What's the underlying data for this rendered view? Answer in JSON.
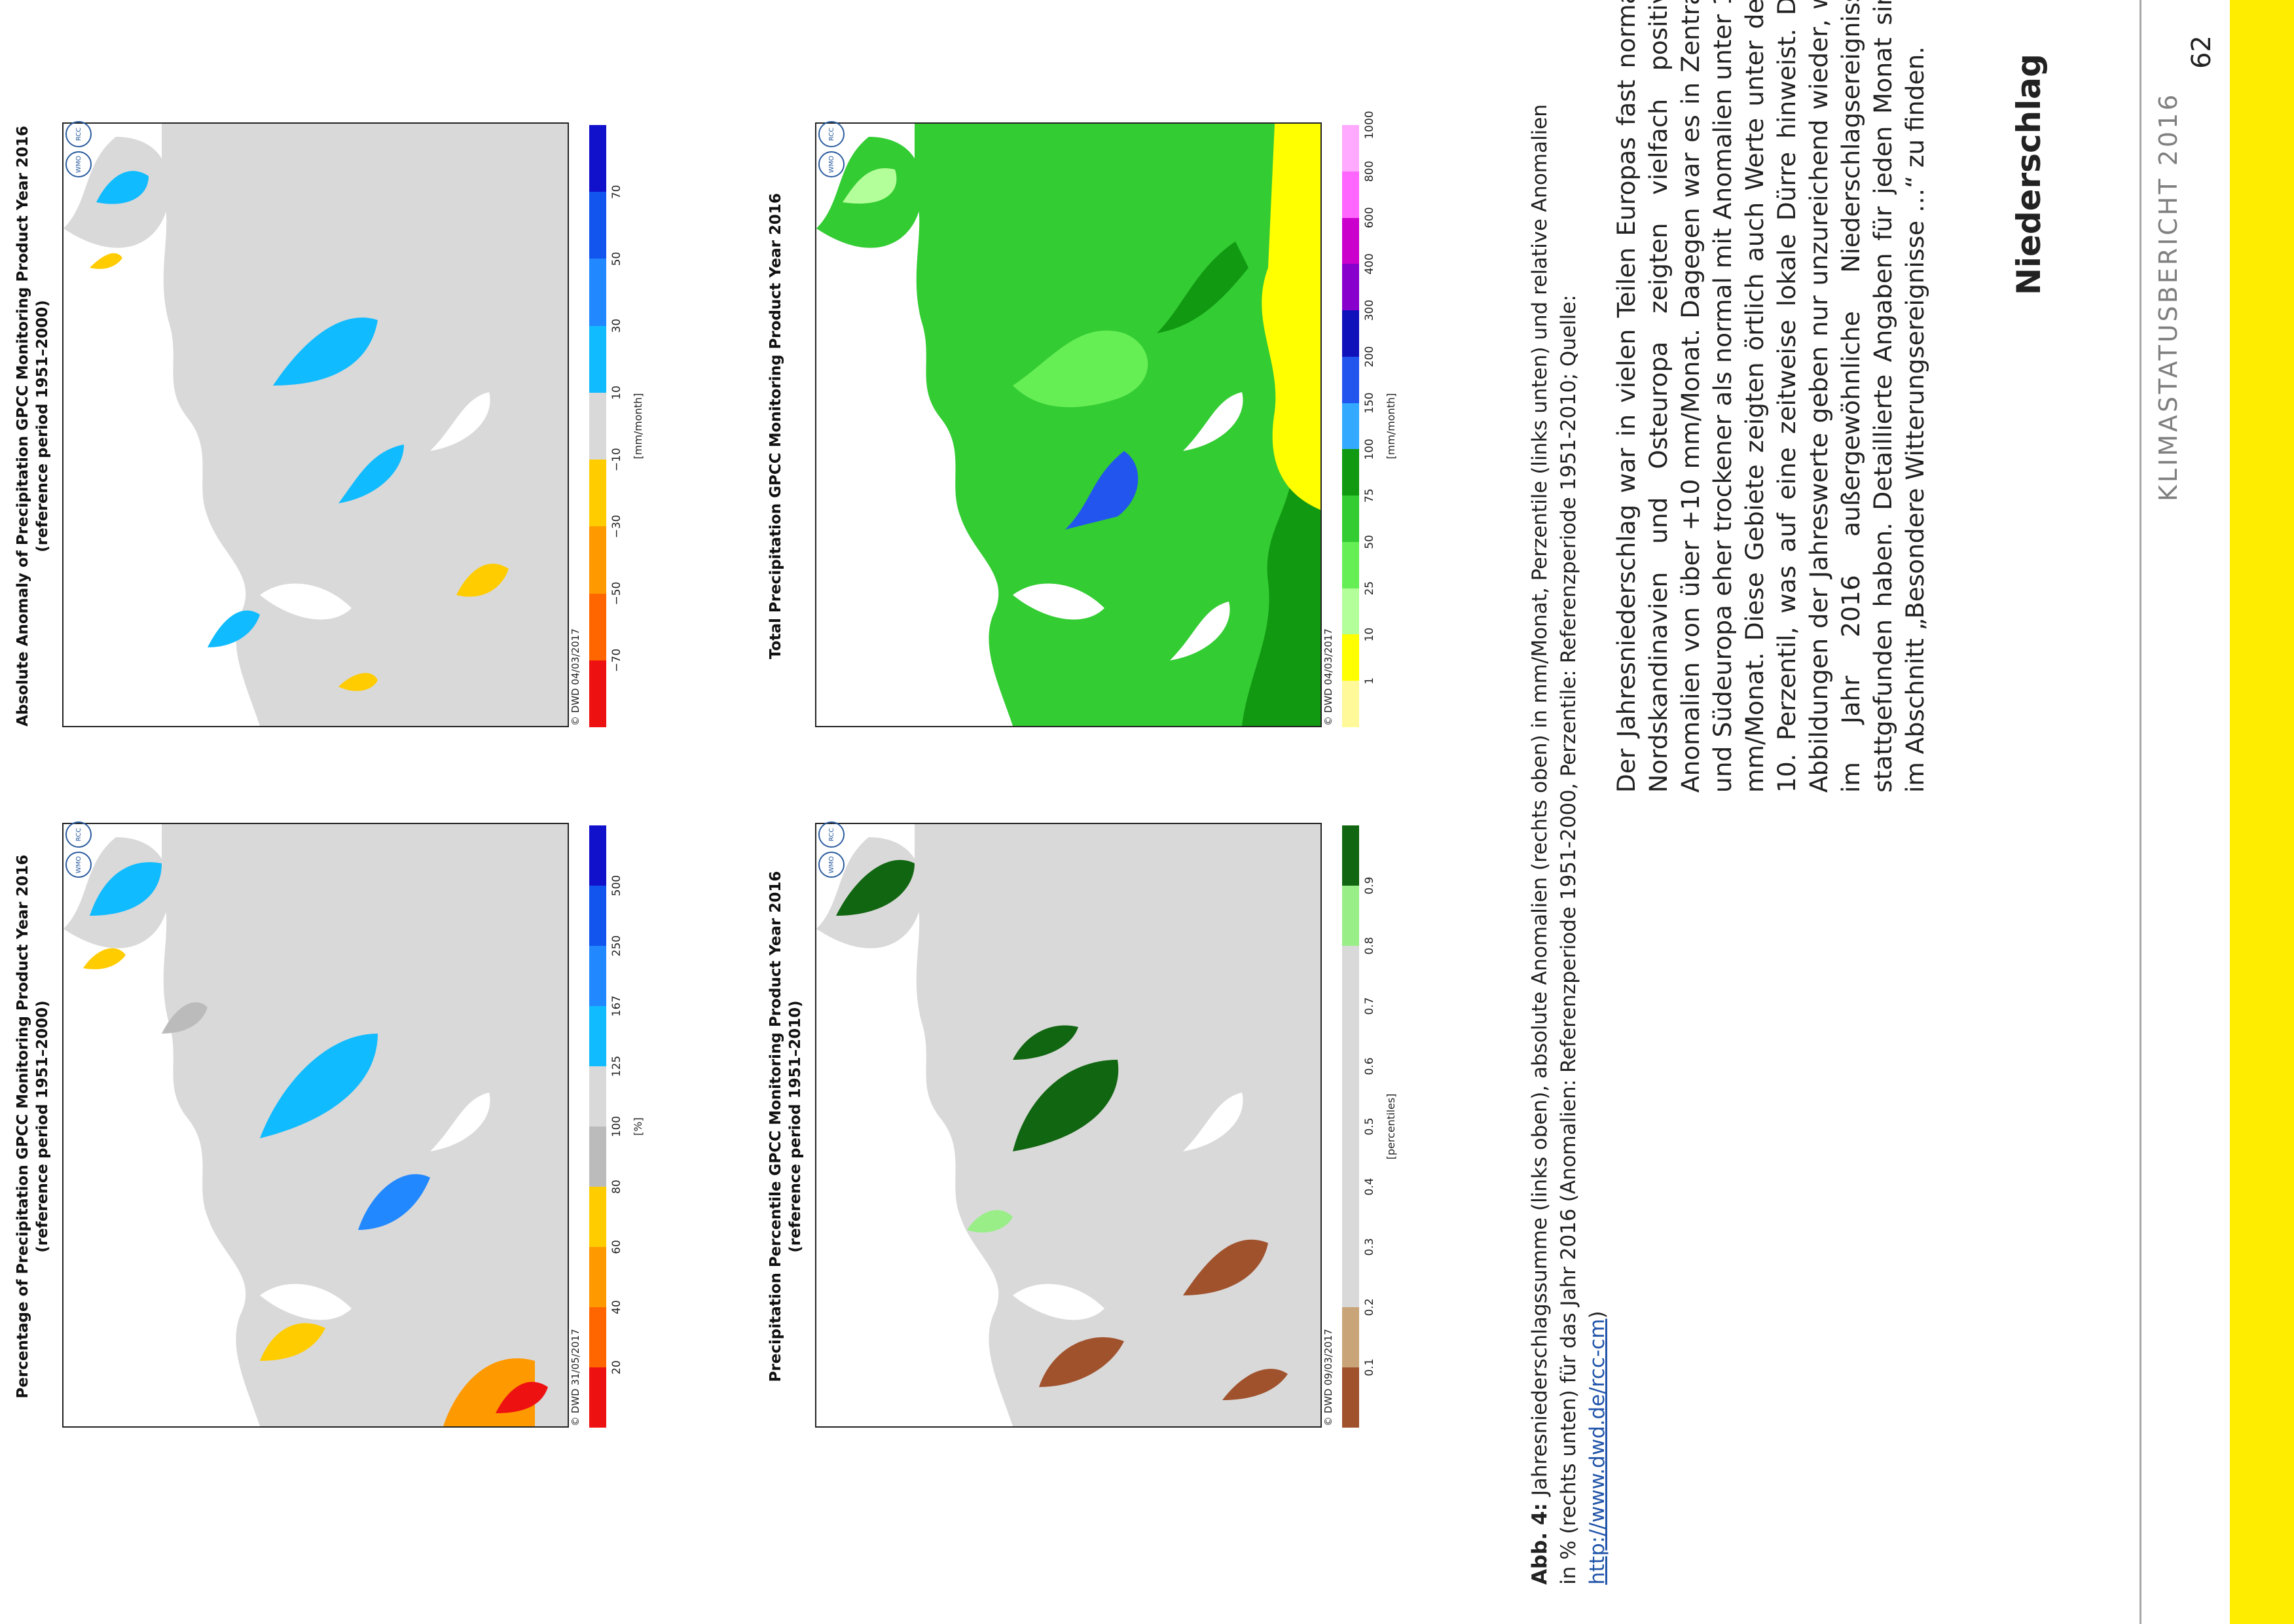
{
  "header": {
    "title": "KLIMASTATUSBERICHT 2016",
    "page_number": "62"
  },
  "section": {
    "title": "Niederschlag",
    "body": "Der Jahresniederschlag war in vielen Teilen Europas fast normal. Nordskandinavien und Osteuropa zeigten vielfach positive Anomalien von über +10 mm/Monat. Dagegen war es in Zentral- und Südeuropa eher trockener als normal mit Anomalien unter  10 mm/Monat. Diese Gebiete zeigten örtlich auch Werte unter dem 10. Perzentil, was auf eine zeitweise lokale Dürre hinweist. Die Abbildungen der Jahreswerte geben nur unzureichend wieder, wo im Jahr 2016 außergewöhnliche Niederschlagsereignisse stattgefunden haben. Detaillierte Angaben für jeden Monat sind im Abschnitt „Besondere Witterungsereignisse …“ zu finden."
  },
  "panels": {
    "total": {
      "title1": "Total Precipitation GPCC Monitoring Product Year 2016",
      "title2": "",
      "credit": "© DWD 04/03/2017",
      "unit": "[mm/month]",
      "ticks": [
        "1",
        "10",
        "25",
        "50",
        "75",
        "100",
        "150",
        "200",
        "300",
        "400",
        "600",
        "800",
        "1000"
      ],
      "colors": [
        "#fff99a",
        "#ffff00",
        "#b3ff9a",
        "#66ee55",
        "#33cc33",
        "#119911",
        "#33aaff",
        "#2255ee",
        "#1111bb",
        "#8800cc",
        "#cc00cc",
        "#ff66ff",
        "#ffaaff"
      ]
    },
    "anomaly": {
      "title1": "Absolute Anomaly of Precipitation GPCC Monitoring Product Year 2016",
      "title2": "(reference period 1951–2000)",
      "credit": "© DWD 04/03/2017",
      "unit": "[mm/month]",
      "ticks": [
        "−70",
        "−50",
        "−30",
        "−10",
        "10",
        "30",
        "50",
        "70"
      ],
      "colors": [
        "#ee1111",
        "#ff6600",
        "#ff9900",
        "#ffcc00",
        "#d9d9d9",
        "#11bbff",
        "#2288ff",
        "#1155ee",
        "#1111cc"
      ]
    },
    "percentile": {
      "title1": "Precipitation Percentile GPCC Monitoring Product Year 2016",
      "title2": "(reference period 1951–2010)",
      "credit": "© DWD 09/03/2017",
      "unit": "[percentiles]",
      "ticks": [
        "0.1",
        "0.2",
        "0.3",
        "0.4",
        "0.5",
        "0.6",
        "0.7",
        "0.8",
        "0.9"
      ],
      "colors": [
        "#a0522d",
        "#c8a478",
        "#d9d9d9",
        "#d9d9d9",
        "#d9d9d9",
        "#d9d9d9",
        "#d9d9d9",
        "#d9d9d9",
        "#99ee88",
        "#116611"
      ]
    },
    "percentage": {
      "title1": "Percentage of Precipitation GPCC Monitoring Product Year 2016",
      "title2": "(reference period 1951–2000)",
      "credit": "© DWD 31/05/2017",
      "unit": "[%]",
      "ticks": [
        "20",
        "40",
        "60",
        "80",
        "100",
        "125",
        "167",
        "250",
        "500"
      ],
      "colors": [
        "#ee1111",
        "#ff6600",
        "#ff9900",
        "#ffcc00",
        "#bbbbbb",
        "#d9d9d9",
        "#11bbff",
        "#2288ff",
        "#1155ee",
        "#1111cc"
      ]
    },
    "logo_text": "WMO RA VI",
    "logo_sub": "RCC Network"
  },
  "caption": {
    "label": "Abb. 4:",
    "text": "Jahresniederschlagssumme (links oben), absolute Anomalien (rechts oben) in mm/Monat, Perzentile (links unten) und relative Anomalien in % (rechts unten) für das Jahr 2016 (Anomalien: Referenzperiode 1951-2000, Perzentile: Referenzperiode 1951-2010; Quelle: ",
    "link": "http://www.dwd.de/rcc-cm",
    "end": ")"
  }
}
